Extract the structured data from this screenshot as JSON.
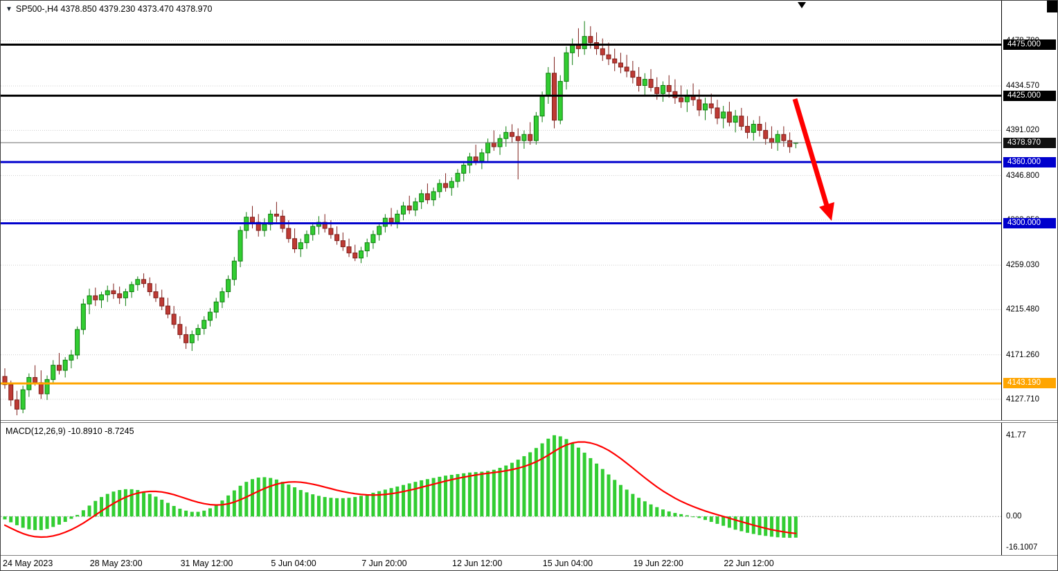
{
  "header": {
    "marker_icon": "▼",
    "text": "SP500-,H4 4378.850 4379.230 4373.470 4378.970"
  },
  "chart_data": {
    "type": "candlestick",
    "symbol": "SP500-",
    "timeframe": "H4",
    "title": "SP500- H4 candlestick chart with MACD(12,26,9)",
    "ylim": [
      4105.9,
      4518.0
    ],
    "grid": "horizontal-dotted",
    "bull_color": "#32CD32",
    "bull_border": "#0E7D0E",
    "bear_color": "#BE3A34",
    "bear_border": "#7E1E1A",
    "gridlines": [
      {
        "price": 4478.78,
        "label": "4478.780"
      },
      {
        "price": 4434.57,
        "label": "4434.570"
      },
      {
        "price": 4391.02,
        "label": "4391.020"
      },
      {
        "price": 4346.8,
        "label": "4346.800"
      },
      {
        "price": 4303.25,
        "label": "4303.250"
      },
      {
        "price": 4259.03,
        "label": "4259.030"
      },
      {
        "price": 4215.48,
        "label": "4215.480"
      },
      {
        "price": 4171.26,
        "label": "4171.260"
      },
      {
        "price": 4127.71,
        "label": "4127.710"
      }
    ],
    "levels": [
      {
        "price": 4475.0,
        "label": "4475.000",
        "color": "#000000"
      },
      {
        "price": 4425.0,
        "label": "4425.000",
        "color": "#000000"
      },
      {
        "price": 4360.0,
        "label": "4360.000",
        "color": "#0000CD"
      },
      {
        "price": 4300.0,
        "label": "4300.000",
        "color": "#0000CD"
      },
      {
        "price": 4143.19,
        "label": "4143.190",
        "color": "#FFA500"
      }
    ],
    "current_price": {
      "price": 4378.97,
      "label": "4378.970",
      "badge_bg": "#111111",
      "line_color": "#6e6e6e"
    },
    "time_labels": [
      {
        "index": 0,
        "text": "24 May 2023"
      },
      {
        "index": 15,
        "text": "28 May 23:00"
      },
      {
        "index": 30,
        "text": "31 May 12:00"
      },
      {
        "index": 45,
        "text": "5 Jun 04:00"
      },
      {
        "index": 60,
        "text": "7 Jun 20:00"
      },
      {
        "index": 75,
        "text": "12 Jun 12:00"
      },
      {
        "index": 90,
        "text": "15 Jun 04:00"
      },
      {
        "index": 105,
        "text": "19 Jun 22:00"
      },
      {
        "index": 120,
        "text": "22 Jun 12:00"
      }
    ],
    "candles_ohlc": [
      [
        4150,
        4158,
        4138,
        4142
      ],
      [
        4142,
        4146,
        4121,
        4127
      ],
      [
        4127,
        4136,
        4112,
        4118
      ],
      [
        4118,
        4141,
        4114,
        4137
      ],
      [
        4137,
        4153,
        4130,
        4149
      ],
      [
        4149,
        4161,
        4141,
        4144
      ],
      [
        4144,
        4156,
        4128,
        4133
      ],
      [
        4133,
        4151,
        4127,
        4147
      ],
      [
        4147,
        4166,
        4143,
        4161
      ],
      [
        4161,
        4173,
        4152,
        4156
      ],
      [
        4156,
        4169,
        4149,
        4166
      ],
      [
        4166,
        4176,
        4158,
        4171
      ],
      [
        4171,
        4199,
        4167,
        4196
      ],
      [
        4196,
        4226,
        4191,
        4221
      ],
      [
        4221,
        4236,
        4211,
        4229
      ],
      [
        4229,
        4237,
        4219,
        4225
      ],
      [
        4225,
        4233,
        4217,
        4230
      ],
      [
        4230,
        4239,
        4223,
        4234
      ],
      [
        4234,
        4241,
        4226,
        4231
      ],
      [
        4231,
        4238,
        4221,
        4227
      ],
      [
        4227,
        4236,
        4219,
        4233
      ],
      [
        4233,
        4243,
        4227,
        4240
      ],
      [
        4240,
        4248,
        4234,
        4245
      ],
      [
        4245,
        4251,
        4237,
        4241
      ],
      [
        4241,
        4247,
        4229,
        4233
      ],
      [
        4233,
        4241,
        4223,
        4227
      ],
      [
        4227,
        4235,
        4215,
        4219
      ],
      [
        4219,
        4227,
        4207,
        4211
      ],
      [
        4211,
        4219,
        4197,
        4201
      ],
      [
        4201,
        4209,
        4187,
        4191
      ],
      [
        4191,
        4199,
        4177,
        4183
      ],
      [
        4183,
        4195,
        4175,
        4191
      ],
      [
        4191,
        4201,
        4185,
        4197
      ],
      [
        4197,
        4209,
        4191,
        4205
      ],
      [
        4205,
        4217,
        4199,
        4213
      ],
      [
        4213,
        4227,
        4207,
        4223
      ],
      [
        4223,
        4237,
        4217,
        4233
      ],
      [
        4233,
        4249,
        4227,
        4245
      ],
      [
        4245,
        4267,
        4239,
        4263
      ],
      [
        4263,
        4297,
        4257,
        4293
      ],
      [
        4293,
        4311,
        4285,
        4306
      ],
      [
        4306,
        4317,
        4295,
        4301
      ],
      [
        4301,
        4309,
        4287,
        4293
      ],
      [
        4293,
        4305,
        4287,
        4299
      ],
      [
        4299,
        4313,
        4293,
        4309
      ],
      [
        4309,
        4321,
        4301,
        4307
      ],
      [
        4307,
        4313,
        4291,
        4295
      ],
      [
        4295,
        4303,
        4281,
        4285
      ],
      [
        4285,
        4295,
        4271,
        4275
      ],
      [
        4275,
        4285,
        4267,
        4281
      ],
      [
        4281,
        4293,
        4275,
        4289
      ],
      [
        4289,
        4301,
        4283,
        4297
      ],
      [
        4297,
        4307,
        4289,
        4301
      ],
      [
        4301,
        4309,
        4291,
        4295
      ],
      [
        4295,
        4303,
        4285,
        4289
      ],
      [
        4289,
        4297,
        4279,
        4283
      ],
      [
        4283,
        4291,
        4273,
        4277
      ],
      [
        4277,
        4285,
        4267,
        4271
      ],
      [
        4271,
        4279,
        4263,
        4266
      ],
      [
        4266,
        4277,
        4261,
        4273
      ],
      [
        4273,
        4285,
        4267,
        4281
      ],
      [
        4281,
        4293,
        4275,
        4289
      ],
      [
        4289,
        4301,
        4283,
        4297
      ],
      [
        4297,
        4309,
        4291,
        4305
      ],
      [
        4305,
        4315,
        4297,
        4301
      ],
      [
        4301,
        4313,
        4295,
        4309
      ],
      [
        4309,
        4321,
        4303,
        4317
      ],
      [
        4317,
        4327,
        4309,
        4313
      ],
      [
        4313,
        4325,
        4307,
        4321
      ],
      [
        4321,
        4333,
        4314,
        4329
      ],
      [
        4329,
        4339,
        4319,
        4323
      ],
      [
        4323,
        4335,
        4317,
        4331
      ],
      [
        4331,
        4343,
        4325,
        4339
      ],
      [
        4339,
        4349,
        4331,
        4335
      ],
      [
        4335,
        4345,
        4327,
        4341
      ],
      [
        4341,
        4353,
        4335,
        4349
      ],
      [
        4349,
        4361,
        4341,
        4357
      ],
      [
        4357,
        4369,
        4349,
        4365
      ],
      [
        4365,
        4377,
        4357,
        4361
      ],
      [
        4361,
        4373,
        4353,
        4369
      ],
      [
        4369,
        4383,
        4361,
        4379
      ],
      [
        4379,
        4391,
        4371,
        4375
      ],
      [
        4375,
        4387,
        4367,
        4383
      ],
      [
        4383,
        4395,
        4375,
        4389
      ],
      [
        4389,
        4397,
        4379,
        4385
      ],
      [
        4385,
        4393,
        4343,
        4381
      ],
      [
        4381,
        4391,
        4373,
        4387
      ],
      [
        4387,
        4399,
        4377,
        4381
      ],
      [
        4381,
        4409,
        4377,
        4405
      ],
      [
        4405,
        4429,
        4399,
        4425
      ],
      [
        4425,
        4453,
        4417,
        4447
      ],
      [
        4447,
        4463,
        4393,
        4401
      ],
      [
        4401,
        4445,
        4397,
        4439
      ],
      [
        4439,
        4473,
        4431,
        4467
      ],
      [
        4467,
        4481,
        4455,
        4475
      ],
      [
        4475,
        4491,
        4463,
        4471
      ],
      [
        4471,
        4498,
        4465,
        4483
      ],
      [
        4483,
        4493,
        4471,
        4477
      ],
      [
        4477,
        4487,
        4465,
        4471
      ],
      [
        4471,
        4481,
        4459,
        4465
      ],
      [
        4465,
        4477,
        4455,
        4461
      ],
      [
        4461,
        4471,
        4449,
        4457
      ],
      [
        4457,
        4467,
        4447,
        4453
      ],
      [
        4453,
        4465,
        4443,
        4449
      ],
      [
        4449,
        4459,
        4437,
        4443
      ],
      [
        4443,
        4453,
        4429,
        4435
      ],
      [
        4435,
        4447,
        4425,
        4441
      ],
      [
        4441,
        4451,
        4429,
        4433
      ],
      [
        4433,
        4443,
        4421,
        4427
      ],
      [
        4427,
        4439,
        4419,
        4435
      ],
      [
        4435,
        4445,
        4423,
        4429
      ],
      [
        4429,
        4441,
        4417,
        4423
      ],
      [
        4423,
        4435,
        4413,
        4419
      ],
      [
        4419,
        4431,
        4409,
        4425
      ],
      [
        4425,
        4437,
        4415,
        4421
      ],
      [
        4421,
        4431,
        4405,
        4411
      ],
      [
        4411,
        4423,
        4401,
        4417
      ],
      [
        4417,
        4427,
        4407,
        4413
      ],
      [
        4413,
        4421,
        4397,
        4403
      ],
      [
        4403,
        4415,
        4393,
        4409
      ],
      [
        4409,
        4419,
        4395,
        4399
      ],
      [
        4399,
        4411,
        4389,
        4405
      ],
      [
        4405,
        4413,
        4391,
        4395
      ],
      [
        4395,
        4405,
        4383,
        4389
      ],
      [
        4389,
        4401,
        4381,
        4397
      ],
      [
        4397,
        4405,
        4385,
        4391
      ],
      [
        4391,
        4399,
        4377,
        4383
      ],
      [
        4383,
        4395,
        4373,
        4379
      ],
      [
        4379,
        4391,
        4371,
        4387
      ],
      [
        4387,
        4395,
        4375,
        4381
      ],
      [
        4381,
        4389,
        4369,
        4375
      ],
      [
        4378.85,
        4379.23,
        4373.47,
        4378.97
      ]
    ],
    "indicator": {
      "name": "MACD(12,26,9)",
      "label": "MACD(12,26,9) -10.8910 -8.7245",
      "macd_value": -10.891,
      "signal_value": -8.7245,
      "ylim": [
        -19.5,
        47.4
      ],
      "histogram_color": "#32CD32",
      "signal_color": "#FF0000",
      "zero_line": 0,
      "axis_labels": [
        {
          "value": 41.77,
          "text": "41.77"
        },
        {
          "value": 0,
          "text": "0.00"
        },
        {
          "value": -16.1007,
          "text": "-16.1007"
        }
      ],
      "histogram": [
        -1.5,
        -3,
        -4.5,
        -5.8,
        -6.6,
        -7,
        -7,
        -6.4,
        -5.4,
        -4.2,
        -2.8,
        -1.2,
        0.8,
        3.2,
        5.6,
        8,
        10,
        11.6,
        12.8,
        13.6,
        14,
        14,
        13.6,
        12.8,
        11.6,
        10.2,
        8.6,
        7,
        5.4,
        4,
        3,
        2.4,
        2.4,
        3,
        4.2,
        6,
        8.2,
        10.8,
        13.4,
        15.8,
        17.8,
        19.2,
        20,
        20.2,
        19.8,
        19,
        17.8,
        16.4,
        15,
        13.6,
        12.4,
        11.4,
        10.6,
        10,
        9.6,
        9.4,
        9.4,
        9.6,
        10,
        10.6,
        11.4,
        12.2,
        13,
        13.8,
        14.6,
        15.4,
        16.2,
        17,
        17.8,
        18.6,
        19.2,
        19.8,
        20.4,
        21,
        21.4,
        21.8,
        22.2,
        22.6,
        22.8,
        23,
        23.4,
        24,
        25,
        26.2,
        27.6,
        29.2,
        31,
        33,
        35.2,
        37.6,
        40,
        41.77,
        41.2,
        39.8,
        37.8,
        35.4,
        32.8,
        30,
        27.2,
        24.4,
        21.6,
        18.8,
        16.2,
        13.8,
        11.6,
        9.6,
        7.8,
        6.2,
        4.8,
        3.6,
        2.6,
        1.8,
        1.2,
        0.6,
        0,
        -0.8,
        -1.8,
        -2.8,
        -3.8,
        -4.8,
        -5.8,
        -6.8,
        -7.6,
        -8.4,
        -9,
        -9.6,
        -10,
        -10.4,
        -10.7,
        -10.9,
        -11,
        -10.89
      ],
      "signal": [
        -4.5,
        -6,
        -7.5,
        -8.8,
        -9.8,
        -10.4,
        -10.6,
        -10.5,
        -10,
        -9.2,
        -8.1,
        -6.8,
        -5.2,
        -3.4,
        -1.4,
        0.7,
        2.8,
        4.8,
        6.7,
        8.4,
        9.9,
        11.1,
        12,
        12.6,
        12.9,
        12.9,
        12.6,
        12,
        11.2,
        10.2,
        9.2,
        8.2,
        7.3,
        6.6,
        6.1,
        5.9,
        6,
        6.5,
        7.4,
        8.6,
        10,
        11.5,
        13,
        14.4,
        15.6,
        16.6,
        17.3,
        17.7,
        17.8,
        17.6,
        17.2,
        16.6,
        15.9,
        15.1,
        14.3,
        13.5,
        12.8,
        12.2,
        11.7,
        11.3,
        11.1,
        11,
        11.1,
        11.3,
        11.7,
        12.2,
        12.8,
        13.5,
        14.2,
        15,
        15.8,
        16.6,
        17.4,
        18.2,
        18.9,
        19.6,
        20.2,
        20.8,
        21.3,
        21.8,
        22.2,
        22.6,
        23,
        23.5,
        24.1,
        24.8,
        25.7,
        26.8,
        28.1,
        29.7,
        31.5,
        33.5,
        35.3,
        36.8,
        37.8,
        38.3,
        38.3,
        37.8,
        36.9,
        35.6,
        34,
        32,
        29.8,
        27.4,
        24.9,
        22.4,
        19.9,
        17.5,
        15.2,
        13.1,
        11.2,
        9.4,
        7.8,
        6.4,
        5.1,
        3.9,
        2.8,
        1.8,
        0.9,
        0,
        -0.9,
        -1.8,
        -2.7,
        -3.6,
        -4.5,
        -5.3,
        -6.1,
        -6.8,
        -7.4,
        -7.9,
        -8.4,
        -8.72
      ]
    },
    "annotations": {
      "arrow": {
        "color": "#FF0000",
        "line": [
          1147,
          142,
          1193,
          296
        ],
        "head": [
          [
            1200,
            318
          ],
          [
            1182,
            298
          ],
          [
            1204,
            291
          ]
        ],
        "width": 7
      },
      "shift_marker_x": 1157
    }
  }
}
